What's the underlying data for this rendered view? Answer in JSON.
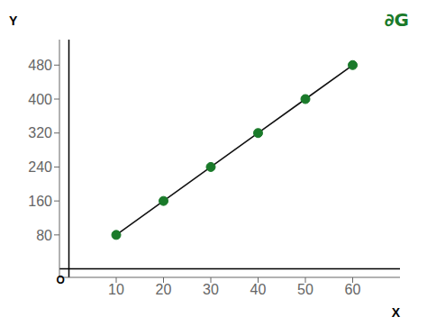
{
  "chart_data": {
    "type": "line",
    "x": [
      10,
      20,
      30,
      40,
      50,
      60
    ],
    "values": [
      80,
      160,
      240,
      320,
      400,
      480
    ],
    "color": "#111111",
    "colors": [
      "#1a7a2a",
      "#1a7a2a",
      "#1a7a2a",
      "#1a7a2a",
      "#1a7a2a",
      "#1a7a2a"
    ],
    "marker": "circle",
    "xlabel": "X",
    "ylabel": "Y",
    "annotations": [
      "O",
      "∂G"
    ],
    "xlim": [
      -2,
      70
    ],
    "ylim": [
      -20,
      540
    ],
    "xticks": [
      10,
      20,
      30,
      40,
      50,
      60
    ],
    "yticks": [
      80,
      160,
      240,
      320,
      400,
      480
    ],
    "grid": false
  }
}
